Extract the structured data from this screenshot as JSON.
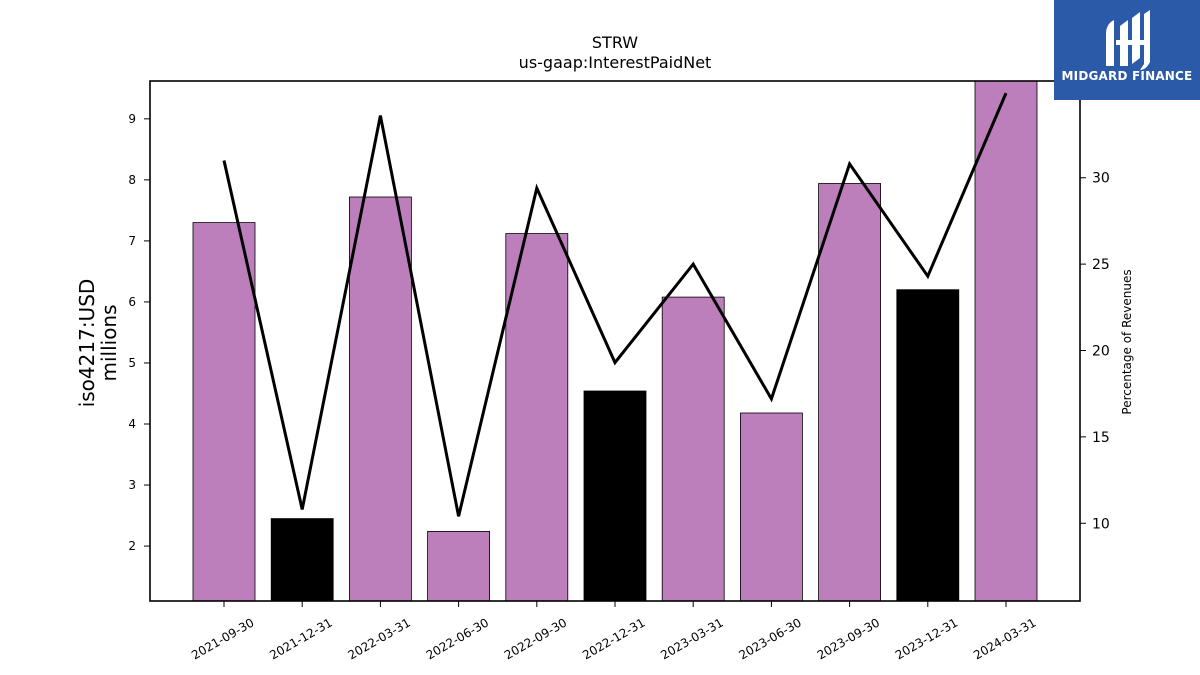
{
  "chart_data": {
    "type": "bar",
    "title": "STRW",
    "subtitle": "us-gaap:InterestPaidNet",
    "ylabel_left_line1": "iso4217:USD",
    "ylabel_left_line2": "millions",
    "ylabel_right": "Percentage of Revenues",
    "categories": [
      "2021-09-30",
      "2021-12-31",
      "2022-03-31",
      "2022-06-30",
      "2022-09-30",
      "2022-12-31",
      "2023-03-31",
      "2023-06-30",
      "2023-09-30",
      "2023-12-31",
      "2024-03-31"
    ],
    "series": [
      {
        "type": "bar",
        "axis": "left",
        "values": [
          7.3,
          2.45,
          7.72,
          2.24,
          7.12,
          4.54,
          6.08,
          4.18,
          7.94,
          6.2,
          9.62
        ],
        "colors": [
          "#bc7fbc",
          "#000000",
          "#bc7fbc",
          "#bc7fbc",
          "#bc7fbc",
          "#000000",
          "#bc7fbc",
          "#bc7fbc",
          "#bc7fbc",
          "#000000",
          "#bc7fbc"
        ]
      },
      {
        "type": "line",
        "axis": "right",
        "color": "#000000",
        "values": [
          31.0,
          10.8,
          33.6,
          10.4,
          29.4,
          19.3,
          25.0,
          17.2,
          30.8,
          24.3,
          34.9
        ]
      }
    ],
    "ylim_left": [
      1.1,
      9.62
    ],
    "yticks_left": [
      "2",
      "3",
      "4",
      "5",
      "6",
      "7",
      "8",
      "9"
    ],
    "ylim_right": [
      5.5,
      35.6
    ],
    "yticks_right": [
      "10",
      "15",
      "20",
      "25",
      "30"
    ],
    "grid": false,
    "legend": "none"
  },
  "logo": {
    "text": "MIDGARD FINANCE",
    "icon": "midgard-logo-icon"
  }
}
